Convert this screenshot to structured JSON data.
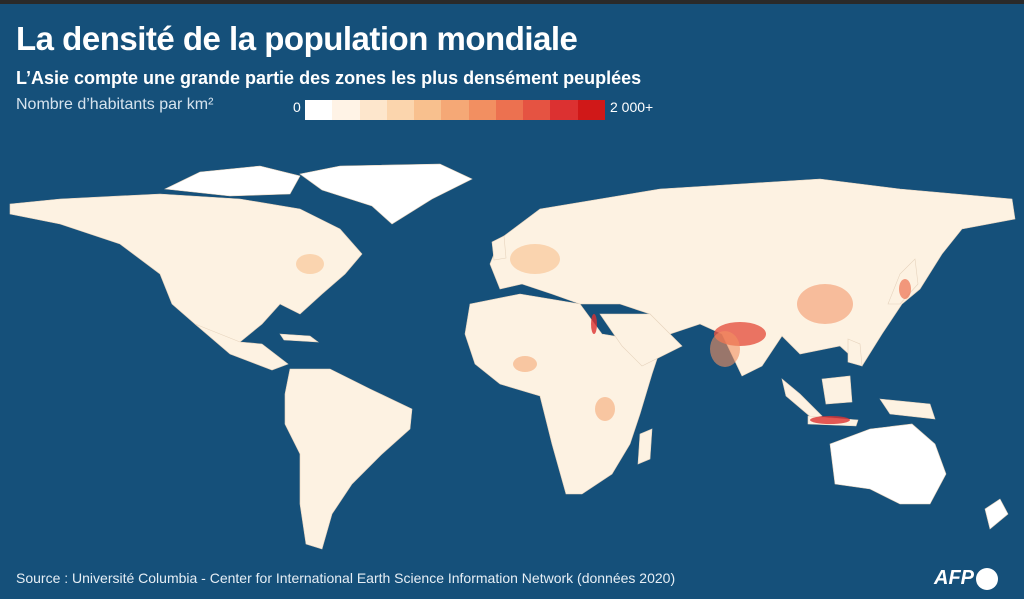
{
  "header": {
    "title": "La densité de la population mondiale",
    "subtitle": "L’Asie compte une grande partie des zones les plus densément peuplées"
  },
  "legend": {
    "label": "Nombre d’habitants par km²",
    "min": "0",
    "max": "2 000+",
    "colors": [
      "#ffffff",
      "#fff3e6",
      "#fde6cc",
      "#fbd5ad",
      "#f8c08e",
      "#f5a876",
      "#f28f61",
      "#ec7150",
      "#e55342",
      "#dc3131",
      "#d01818"
    ]
  },
  "footer": {
    "source": "Source : Université Columbia - Center for International Earth Science Information Network (données 2020)",
    "logo": "AFP"
  },
  "colors": {
    "ocean": "#15507a",
    "land": "#fdf3e4"
  }
}
